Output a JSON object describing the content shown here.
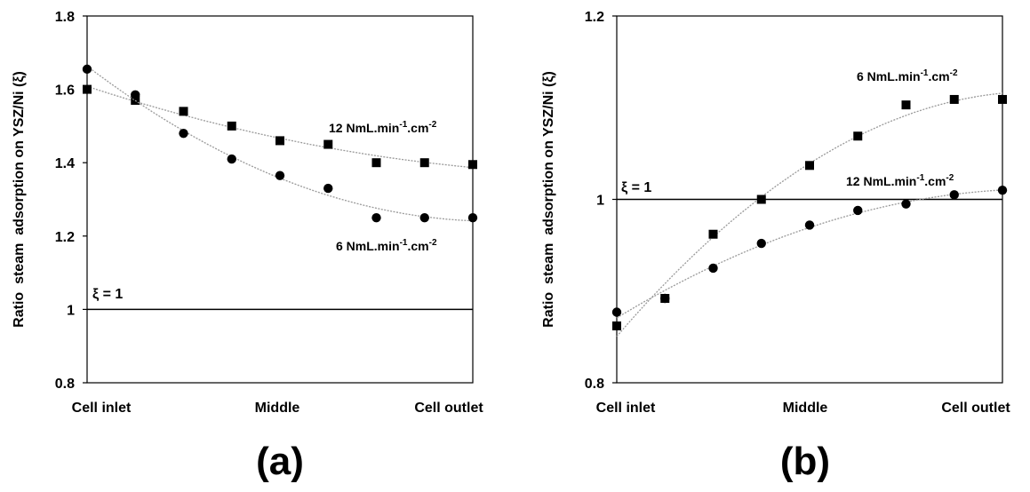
{
  "chart_data": [
    {
      "type": "scatter",
      "panel_label": "(a)",
      "ylabel": "Ratio  steam  adsorption on YSZ/Ni (ξ)",
      "ylim": [
        0.8,
        1.8
      ],
      "yticks": [
        "0.8",
        "1",
        "1.2",
        "1.4",
        "1.6",
        "1.8"
      ],
      "xlim": [
        0,
        8
      ],
      "x_category_labels": [
        {
          "x": 0,
          "text": "Cell inlet"
        },
        {
          "x": 4,
          "text": "Middle"
        },
        {
          "x": 8,
          "text": "Cell outlet"
        }
      ],
      "reference_line": {
        "y": 1,
        "label": "ξ = 1"
      },
      "trendline": "polynomial",
      "series": [
        {
          "name": "12 NmL.min-1.cm-2",
          "name_base": "12 NmL.min",
          "name_sup1": "-1",
          "name_mid": ".cm",
          "name_sup2": "-2",
          "marker": "square",
          "x": [
            0,
            1,
            2,
            3,
            4,
            5,
            6,
            7,
            8
          ],
          "y": [
            1.6,
            1.57,
            1.54,
            1.5,
            1.46,
            1.45,
            1.4,
            1.4,
            1.395
          ]
        },
        {
          "name": "6 NmL.min-1.cm-2",
          "name_base": "6 NmL.min",
          "name_sup1": "-1",
          "name_mid": ".cm",
          "name_sup2": "-2",
          "marker": "circle",
          "x": [
            0,
            1,
            2,
            3,
            4,
            5,
            6,
            7,
            8
          ],
          "y": [
            1.655,
            1.585,
            1.48,
            1.41,
            1.365,
            1.33,
            1.25,
            1.25,
            1.25
          ]
        }
      ]
    },
    {
      "type": "scatter",
      "panel_label": "(b)",
      "ylabel": "Ratio  steam  adsorption on YSZ/Ni (ξ)",
      "ylim": [
        0.8,
        1.2
      ],
      "yticks": [
        "0.8",
        "1",
        "1.2"
      ],
      "xlim": [
        0,
        8
      ],
      "x_category_labels": [
        {
          "x": 0,
          "text": "Cell inlet"
        },
        {
          "x": 4,
          "text": "Middle"
        },
        {
          "x": 8,
          "text": "Cell outlet"
        }
      ],
      "reference_line": {
        "y": 1,
        "label": "ξ = 1"
      },
      "trendline": "polynomial",
      "series": [
        {
          "name": "6 NmL.min-1.cm-2",
          "name_base": "6 NmL.min",
          "name_sup1": "-1",
          "name_mid": ".cm",
          "name_sup2": "-2",
          "marker": "square",
          "x": [
            0,
            1,
            2,
            3,
            4,
            5,
            6,
            7,
            8
          ],
          "y": [
            0.862,
            0.892,
            0.962,
            1.0,
            1.037,
            1.069,
            1.103,
            1.109,
            1.109
          ]
        },
        {
          "name": "12 NmL.min-1.cm-2",
          "name_base": "12 NmL.min",
          "name_sup1": "-1",
          "name_mid": ".cm",
          "name_sup2": "-2",
          "marker": "circle",
          "x": [
            0,
            1,
            2,
            3,
            4,
            5,
            6,
            7,
            8
          ],
          "y": [
            0.877,
            0.892,
            0.925,
            0.952,
            0.972,
            0.988,
            0.995,
            1.005,
            1.01
          ]
        }
      ]
    }
  ]
}
